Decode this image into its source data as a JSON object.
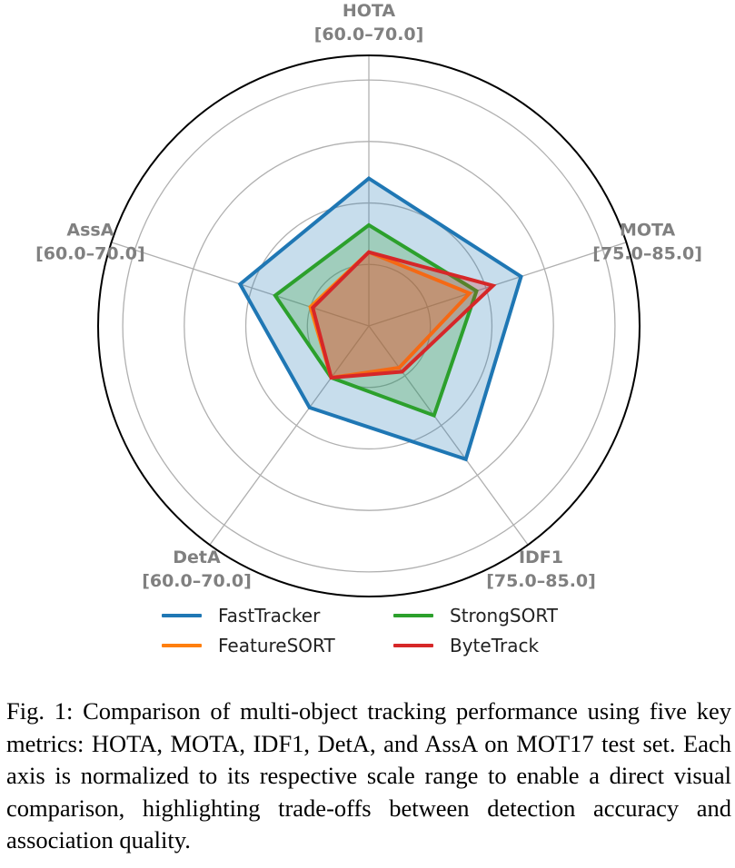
{
  "chart_data": {
    "type": "radar",
    "axes": [
      {
        "name": "HOTA",
        "range_label": "[60.0–70.0]",
        "min": 60.0,
        "max": 70.0
      },
      {
        "name": "MOTA",
        "range_label": "[75.0–85.0]",
        "min": 75.0,
        "max": 85.0
      },
      {
        "name": "IDF1",
        "range_label": "[75.0–85.0]",
        "min": 75.0,
        "max": 85.0
      },
      {
        "name": "DetA",
        "range_label": "[60.0–70.0]",
        "min": 60.0,
        "max": 70.0
      },
      {
        "name": "AssA",
        "range_label": "[60.0–70.0]",
        "min": 60.0,
        "max": 70.0
      }
    ],
    "series": [
      {
        "name": "FastTracker",
        "color": "#1f77b4",
        "values": [
          66.0,
          81.5,
          81.7,
          64.1,
          65.5
        ]
      },
      {
        "name": "StrongSORT",
        "color": "#2ca02c",
        "values": [
          64.1,
          79.6,
          79.5,
          62.6,
          64.0
        ]
      },
      {
        "name": "FeatureSORT",
        "color": "#ff7f0e",
        "values": [
          63.0,
          79.3,
          77.1,
          62.6,
          62.5
        ]
      },
      {
        "name": "ByteTrack",
        "color": "#d62728",
        "values": [
          63.0,
          80.3,
          77.3,
          62.6,
          62.4
        ]
      }
    ],
    "rlim": [
      0,
      1.1
    ],
    "grid": true,
    "legend_position": "bottom",
    "legend_columns": 2
  },
  "legend": {
    "items": [
      {
        "label": "FastTracker",
        "color": "#1f77b4"
      },
      {
        "label": "StrongSORT",
        "color": "#2ca02c"
      },
      {
        "label": "FeatureSORT",
        "color": "#ff7f0e"
      },
      {
        "label": "ByteTrack",
        "color": "#d62728"
      }
    ]
  },
  "caption": "Fig. 1: Comparison of multi-object tracking performance using five key metrics: HOTA, MOTA, IDF1, DetA, and AssA on MOT17 test set. Each axis is normalized to its respective scale range to enable a direct visual comparison, highlighting trade-offs between detection accuracy and association quality."
}
